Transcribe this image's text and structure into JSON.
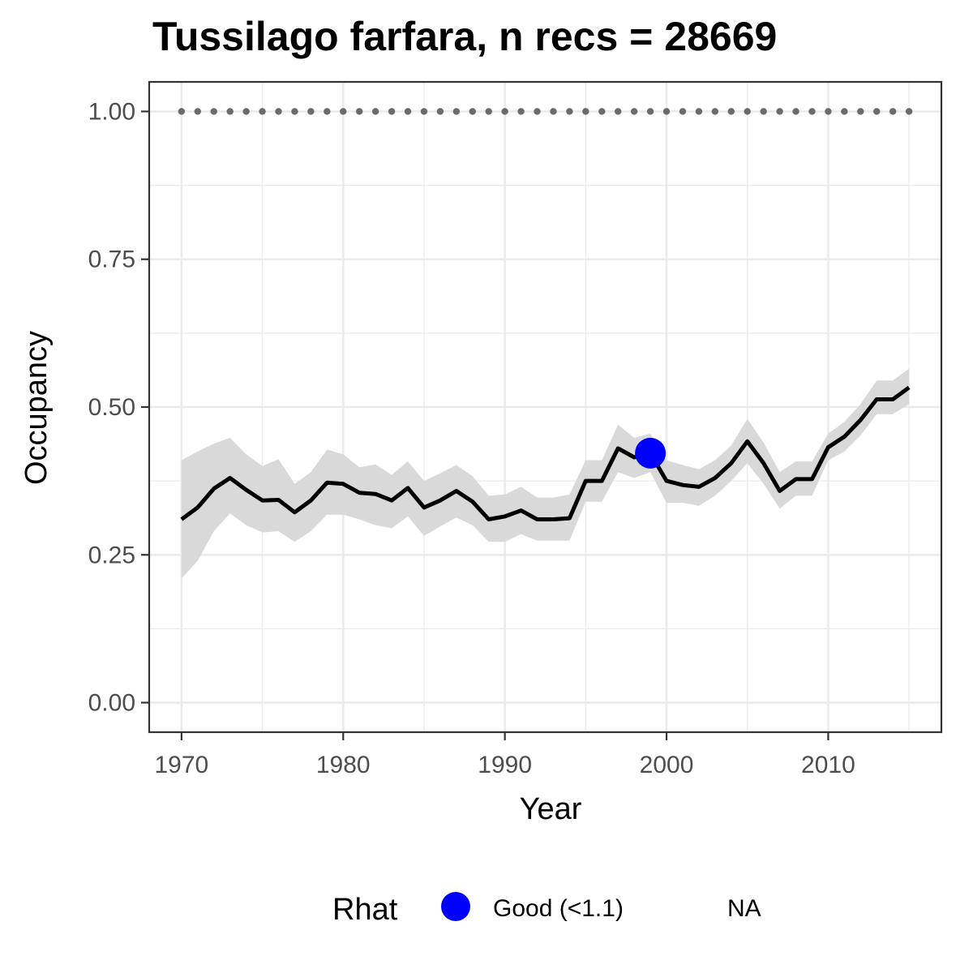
{
  "chart_data": {
    "type": "line",
    "title": "Tussilago farfara, n recs = 28669",
    "xlabel": "Year",
    "ylabel": "Occupancy",
    "xlim": [
      1968,
      2017
    ],
    "ylim": [
      -0.05,
      1.05
    ],
    "x_ticks": [
      1970,
      1980,
      1990,
      2000,
      2010
    ],
    "x_tick_labels": [
      "1970",
      "1980",
      "1990",
      "2000",
      "2010"
    ],
    "y_ticks": [
      0,
      0.25,
      0.5,
      0.75,
      1
    ],
    "y_tick_labels": [
      "0.00",
      "0.25",
      "0.50",
      "0.75",
      "1.00"
    ],
    "grid": true,
    "x": [
      1970,
      1971,
      1972,
      1973,
      1974,
      1975,
      1976,
      1977,
      1978,
      1979,
      1980,
      1981,
      1982,
      1983,
      1984,
      1985,
      1986,
      1987,
      1988,
      1989,
      1990,
      1991,
      1992,
      1993,
      1994,
      1995,
      1996,
      1997,
      1998,
      1999,
      2000,
      2001,
      2002,
      2003,
      2004,
      2005,
      2006,
      2007,
      2008,
      2009,
      2010,
      2011,
      2012,
      2013,
      2014,
      2015
    ],
    "series": [
      {
        "values": [
          0.31,
          0.33,
          0.362,
          0.38,
          0.36,
          0.342,
          0.343,
          0.322,
          0.342,
          0.372,
          0.37,
          0.355,
          0.353,
          0.342,
          0.363,
          0.33,
          0.342,
          0.358,
          0.34,
          0.31,
          0.315,
          0.325,
          0.31,
          0.31,
          0.312,
          0.375,
          0.375,
          0.43,
          0.415,
          0.422,
          0.375,
          0.368,
          0.365,
          0.38,
          0.405,
          0.442,
          0.405,
          0.358,
          0.378,
          0.378,
          0.432,
          0.45,
          0.478,
          0.513,
          0.513,
          0.533
        ],
        "lower": [
          0.21,
          0.24,
          0.29,
          0.32,
          0.3,
          0.288,
          0.29,
          0.272,
          0.29,
          0.318,
          0.318,
          0.31,
          0.3,
          0.295,
          0.315,
          0.282,
          0.298,
          0.313,
          0.3,
          0.272,
          0.272,
          0.285,
          0.274,
          0.274,
          0.274,
          0.34,
          0.34,
          0.39,
          0.38,
          0.39,
          0.338,
          0.338,
          0.333,
          0.35,
          0.375,
          0.405,
          0.37,
          0.328,
          0.35,
          0.35,
          0.41,
          0.425,
          0.452,
          0.488,
          0.488,
          0.505
        ],
        "upper": [
          0.41,
          0.425,
          0.438,
          0.448,
          0.42,
          0.4,
          0.412,
          0.37,
          0.39,
          0.428,
          0.42,
          0.398,
          0.403,
          0.385,
          0.408,
          0.375,
          0.388,
          0.402,
          0.383,
          0.35,
          0.352,
          0.365,
          0.347,
          0.347,
          0.352,
          0.41,
          0.41,
          0.47,
          0.448,
          0.455,
          0.41,
          0.402,
          0.395,
          0.41,
          0.435,
          0.48,
          0.44,
          0.39,
          0.408,
          0.408,
          0.455,
          0.475,
          0.505,
          0.545,
          0.545,
          0.565
        ],
        "color": "#000000",
        "ribbon_color": "#d9d9d9"
      }
    ],
    "reference_line": {
      "value": 1.0,
      "style": "dotted",
      "color": "#6b6b6b"
    },
    "highlight_points": [
      {
        "x": 1999,
        "y": 0.422,
        "color": "#0000ff",
        "category": "Good (<1.1)"
      }
    ],
    "legend": {
      "position": "bottom",
      "title": "Rhat",
      "entries": [
        {
          "label": "Good (<1.1)",
          "color": "#0000ff",
          "marker": "circle"
        },
        {
          "label": "NA",
          "color": "",
          "marker": "none"
        }
      ]
    }
  }
}
